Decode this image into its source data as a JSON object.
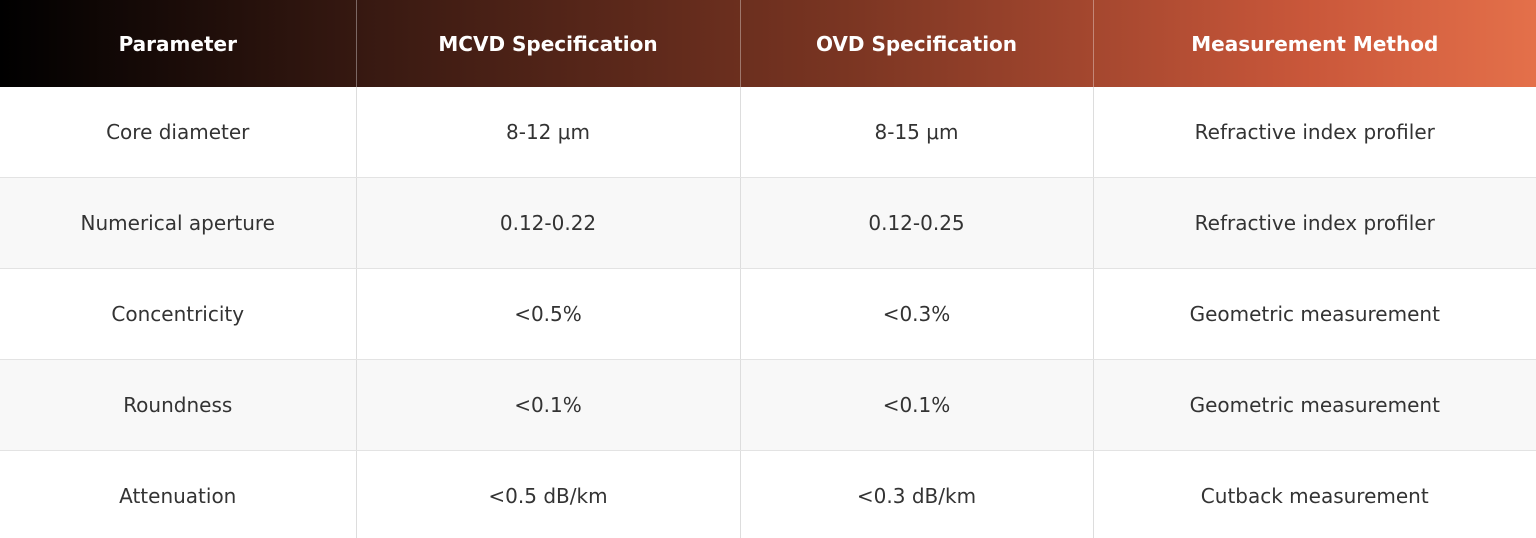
{
  "table": {
    "header": [
      "Parameter",
      "MCVD Specification",
      "OVD Specification",
      "Measurement Method"
    ],
    "rows": [
      [
        "Core diameter",
        "8-12 μm",
        "8-15 μm",
        "Refractive index profiler"
      ],
      [
        "Numerical aperture",
        "0.12-0.22",
        "0.12-0.25",
        "Refractive index profiler"
      ],
      [
        "Concentricity",
        "<0.5%",
        "<0.3%",
        "Geometric measurement"
      ],
      [
        "Roundness",
        "<0.1%",
        "<0.1%",
        "Geometric measurement"
      ],
      [
        "Attenuation",
        "<0.5 dB/km",
        "<0.3 dB/km",
        "Cutback measurement"
      ]
    ]
  }
}
